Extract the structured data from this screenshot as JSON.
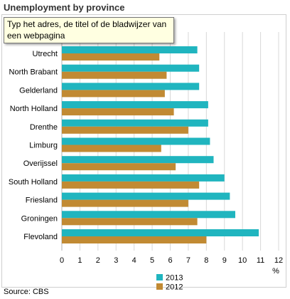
{
  "title": "Unemployment by province",
  "tooltip": "Typ het adres, de titel of de bladwijzer van een webpagina",
  "source": "Source: CBS",
  "chart_data": {
    "type": "bar",
    "orientation": "horizontal",
    "categories": [
      "Utrecht",
      "North Brabant",
      "Gelderland",
      "North Holland",
      "Drenthe",
      "Limburg",
      "Overijssel",
      "South Holland",
      "Friesland",
      "Groningen",
      "Flevoland"
    ],
    "series": [
      {
        "name": "2013",
        "color": "#20b5bf",
        "values": [
          7.5,
          7.6,
          7.6,
          8.1,
          8.1,
          8.2,
          8.4,
          9.0,
          9.3,
          9.6,
          10.9
        ]
      },
      {
        "name": "2012",
        "color": "#c18a33",
        "values": [
          5.4,
          5.8,
          5.7,
          6.2,
          7.0,
          5.5,
          6.3,
          7.6,
          7.0,
          7.5,
          8.0
        ]
      }
    ],
    "xlim": [
      0,
      12
    ],
    "xticks": [
      "0",
      "1",
      "2",
      "3",
      "4",
      "5",
      "6",
      "7",
      "8",
      "9",
      "10",
      "11",
      "12"
    ],
    "xunit": "%",
    "grid": "vertical",
    "legend_position": "bottom"
  }
}
